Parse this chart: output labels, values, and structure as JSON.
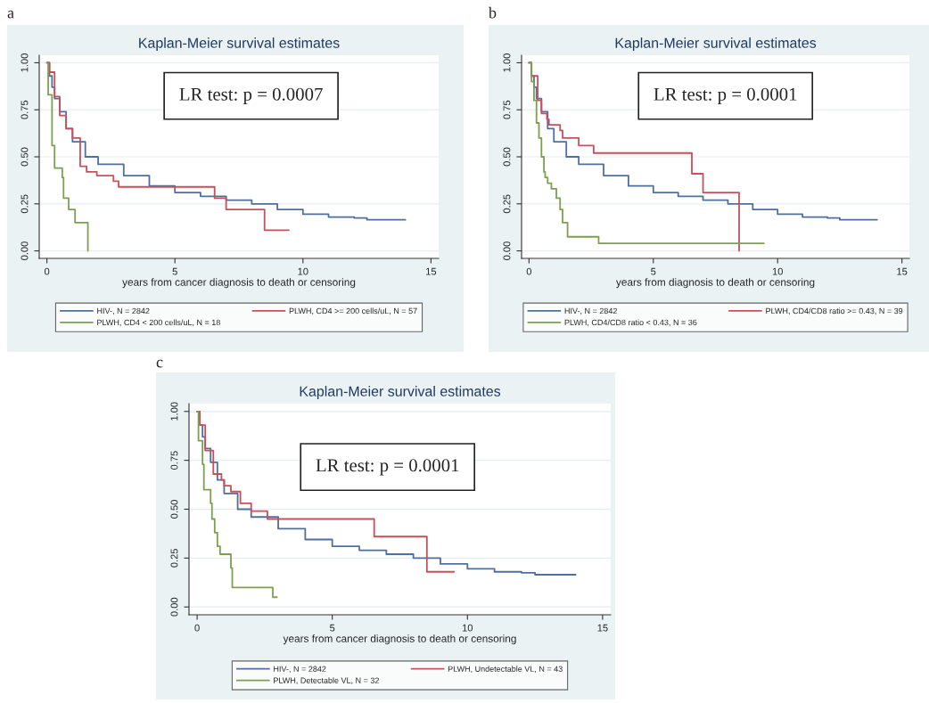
{
  "chart_data": [
    {
      "type": "step",
      "title": "Kaplan-Meier survival estimates",
      "xlabel": "years from cancer diagnosis to death or censoring",
      "annotations": [
        "a",
        "LR test: p = 0.0007"
      ],
      "xlim": [
        -0.3,
        15.3
      ],
      "ylim": [
        -0.04,
        1.04
      ],
      "xticks": [
        0,
        5,
        10,
        15
      ],
      "yticks": [
        {
          "value": 0,
          "label": "0.00"
        },
        {
          "value": 0.25,
          "label": "0.25"
        },
        {
          "value": 0.5,
          "label": "0.50"
        },
        {
          "value": 0.75,
          "label": "0.75"
        },
        {
          "value": 1,
          "label": "1.00"
        }
      ],
      "grid": "y",
      "legend": "bottom",
      "series": [
        {
          "name": "HIV-, N = 2842",
          "color": "#4f6fa0",
          "x": [
            0,
            0.1,
            0.2,
            0.3,
            0.5,
            0.75,
            1,
            1.5,
            2,
            3,
            4,
            5,
            6,
            7,
            8,
            9,
            10,
            11,
            12,
            12.5,
            14
          ],
          "values": [
            1,
            0.93,
            0.87,
            0.81,
            0.74,
            0.65,
            0.58,
            0.5,
            0.46,
            0.4,
            0.345,
            0.31,
            0.29,
            0.27,
            0.25,
            0.22,
            0.195,
            0.18,
            0.175,
            0.165,
            0.165
          ]
        },
        {
          "name": "PLWH, CD4 >= 200 cells/uL, N = 57",
          "color": "#c8505a",
          "x": [
            0,
            0.1,
            0.3,
            0.5,
            0.75,
            1,
            1.3,
            1.55,
            1.95,
            2.6,
            2.8,
            6.55,
            7.0,
            8.5,
            9.45
          ],
          "values": [
            1,
            0.95,
            0.82,
            0.72,
            0.65,
            0.6,
            0.45,
            0.42,
            0.4,
            0.37,
            0.34,
            0.28,
            0.22,
            0.11,
            0.11
          ]
        },
        {
          "name": "PLWH, CD4 < 200 cells/uL, N = 18",
          "color": "#7da050",
          "x": [
            0,
            0.05,
            0.2,
            0.3,
            0.6,
            0.65,
            0.85,
            1.1,
            1.6
          ],
          "values": [
            1,
            0.83,
            0.56,
            0.44,
            0.39,
            0.28,
            0.22,
            0.15,
            0
          ]
        }
      ]
    },
    {
      "type": "step",
      "title": "Kaplan-Meier survival estimates",
      "xlabel": "years from diagnosis to death or censoring",
      "annotations": [
        "b",
        "LR test: p = 0.0001"
      ],
      "xlim": [
        -0.3,
        15.3
      ],
      "ylim": [
        -0.04,
        1.04
      ],
      "xticks": [
        0,
        5,
        10,
        15
      ],
      "yticks": [
        {
          "value": 0,
          "label": "0.00"
        },
        {
          "value": 0.25,
          "label": "0.25"
        },
        {
          "value": 0.5,
          "label": "0.50"
        },
        {
          "value": 0.75,
          "label": "0.75"
        },
        {
          "value": 1,
          "label": "1.00"
        }
      ],
      "grid": "y",
      "legend": "bottom",
      "series": [
        {
          "name": "HIV-, N = 2842",
          "color": "#4f6fa0",
          "x": [
            0,
            0.1,
            0.2,
            0.3,
            0.5,
            0.75,
            1,
            1.5,
            2,
            3,
            4,
            5,
            6,
            7,
            8,
            9,
            10,
            11,
            12,
            12.5,
            14
          ],
          "values": [
            1,
            0.93,
            0.87,
            0.81,
            0.74,
            0.65,
            0.58,
            0.5,
            0.46,
            0.4,
            0.345,
            0.31,
            0.29,
            0.27,
            0.25,
            0.22,
            0.195,
            0.18,
            0.175,
            0.165,
            0.165
          ]
        },
        {
          "name": "PLWH, CD4/CD8 ratio >= 0.43, N = 39",
          "color": "#c8505a",
          "x": [
            0,
            0.1,
            0.35,
            0.5,
            0.72,
            0.8,
            1.25,
            1.35,
            2.0,
            2.6,
            6.55,
            7.0,
            8.45
          ],
          "values": [
            1,
            0.93,
            0.8,
            0.73,
            0.7,
            0.67,
            0.64,
            0.6,
            0.56,
            0.52,
            0.41,
            0.31,
            0
          ]
        },
        {
          "name": "PLWH, CD4/CD8 ratio < 0.43, N = 36",
          "color": "#7da050",
          "x": [
            0,
            0.1,
            0.2,
            0.3,
            0.4,
            0.5,
            0.6,
            0.65,
            0.75,
            0.9,
            1.1,
            1.25,
            1.35,
            1.55,
            2.8,
            9.45
          ],
          "values": [
            1,
            0.9,
            0.8,
            0.68,
            0.6,
            0.5,
            0.42,
            0.39,
            0.36,
            0.33,
            0.28,
            0.22,
            0.15,
            0.075,
            0.04,
            0.04
          ]
        }
      ]
    },
    {
      "type": "step",
      "title": "Kaplan-Meier survival estimates",
      "xlabel": "years from cancer diagnosis to death or censoring",
      "annotations": [
        "c",
        "LR test: p = 0.0001"
      ],
      "xlim": [
        -0.3,
        15.3
      ],
      "ylim": [
        -0.04,
        1.04
      ],
      "xticks": [
        0,
        5,
        10,
        15
      ],
      "yticks": [
        {
          "value": 0,
          "label": "0.00"
        },
        {
          "value": 0.25,
          "label": "0.25"
        },
        {
          "value": 0.5,
          "label": "0.50"
        },
        {
          "value": 0.75,
          "label": "0.75"
        },
        {
          "value": 1,
          "label": "1.00"
        }
      ],
      "grid": "y",
      "legend": "bottom",
      "series": [
        {
          "name": "HIV-, N = 2842",
          "color": "#4f6fa0",
          "x": [
            0,
            0.1,
            0.2,
            0.3,
            0.5,
            0.75,
            1,
            1.5,
            2,
            3,
            4,
            5,
            6,
            7,
            8,
            9,
            10,
            11,
            12,
            12.5,
            14
          ],
          "values": [
            1,
            0.93,
            0.87,
            0.81,
            0.74,
            0.65,
            0.58,
            0.5,
            0.46,
            0.4,
            0.345,
            0.31,
            0.29,
            0.27,
            0.25,
            0.22,
            0.195,
            0.18,
            0.175,
            0.165,
            0.165
          ]
        },
        {
          "name": "PLWH, Undetectable VL, N = 43",
          "color": "#c8505a",
          "x": [
            0,
            0.1,
            0.3,
            0.6,
            0.9,
            1.0,
            1.25,
            1.6,
            2.0,
            2.6,
            6.55,
            8.5,
            9.5
          ],
          "values": [
            1,
            0.93,
            0.8,
            0.68,
            0.65,
            0.62,
            0.59,
            0.53,
            0.49,
            0.45,
            0.36,
            0.18,
            0.18
          ]
        },
        {
          "name": "PLWH, Detectable VL, N = 32",
          "color": "#7da050",
          "x": [
            0,
            0.05,
            0.2,
            0.25,
            0.5,
            0.55,
            0.65,
            0.75,
            0.85,
            1.25,
            1.3,
            2.8,
            2.95
          ],
          "values": [
            1,
            0.85,
            0.73,
            0.6,
            0.53,
            0.45,
            0.38,
            0.31,
            0.27,
            0.2,
            0.1,
            0.05,
            0.05
          ]
        }
      ]
    }
  ]
}
